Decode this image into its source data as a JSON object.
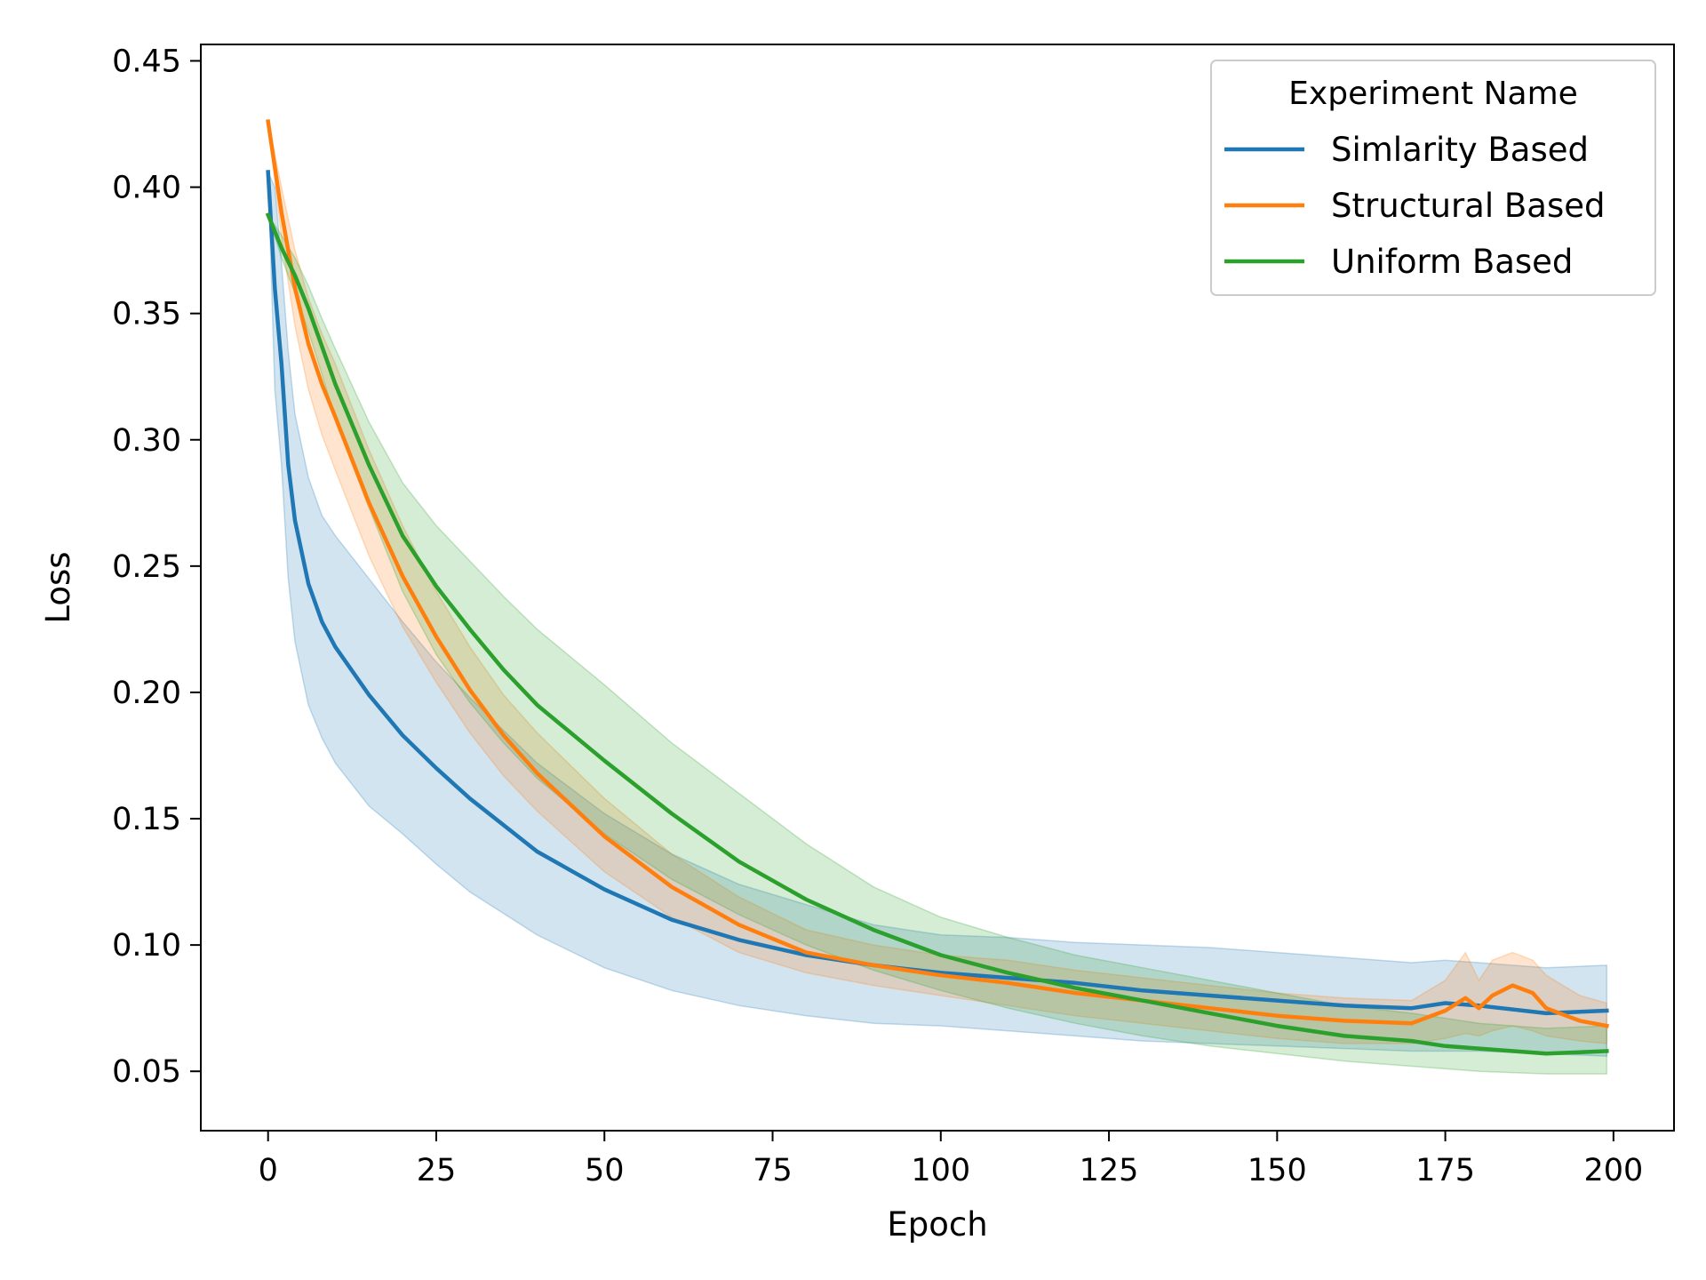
{
  "chart_data": {
    "type": "line",
    "xlabel": "Epoch",
    "ylabel": "Loss",
    "xlim": [
      -10,
      209
    ],
    "ylim": [
      0.0265,
      0.4565
    ],
    "xticks": [
      0,
      25,
      50,
      75,
      100,
      125,
      150,
      175,
      200
    ],
    "yticks": [
      0.05,
      0.1,
      0.15,
      0.2,
      0.25,
      0.3,
      0.35,
      0.4,
      0.45
    ],
    "ytick_labels": [
      "0.05",
      "0.10",
      "0.15",
      "0.20",
      "0.25",
      "0.30",
      "0.35",
      "0.40",
      "0.45"
    ],
    "grid": false,
    "legend": {
      "title": "Experiment Name",
      "placement": "top-right"
    },
    "series": [
      {
        "name": "Simlarity Based",
        "color": "#1f77b4",
        "x": [
          0,
          1,
          2,
          3,
          4,
          6,
          8,
          10,
          15,
          20,
          25,
          30,
          40,
          50,
          60,
          70,
          80,
          90,
          100,
          110,
          120,
          130,
          140,
          150,
          160,
          170,
          175,
          180,
          190,
          199
        ],
        "y": [
          0.406,
          0.36,
          0.33,
          0.29,
          0.268,
          0.243,
          0.228,
          0.218,
          0.199,
          0.183,
          0.17,
          0.158,
          0.137,
          0.122,
          0.11,
          0.102,
          0.096,
          0.092,
          0.089,
          0.087,
          0.085,
          0.082,
          0.08,
          0.078,
          0.076,
          0.075,
          0.077,
          0.076,
          0.073,
          0.074
        ],
        "lower": [
          0.406,
          0.32,
          0.29,
          0.245,
          0.22,
          0.195,
          0.182,
          0.172,
          0.155,
          0.144,
          0.132,
          0.121,
          0.104,
          0.091,
          0.082,
          0.076,
          0.072,
          0.069,
          0.068,
          0.066,
          0.064,
          0.062,
          0.061,
          0.06,
          0.059,
          0.058,
          0.058,
          0.058,
          0.057,
          0.056
        ],
        "upper": [
          0.406,
          0.4,
          0.37,
          0.335,
          0.31,
          0.285,
          0.27,
          0.262,
          0.245,
          0.228,
          0.212,
          0.198,
          0.172,
          0.152,
          0.136,
          0.124,
          0.116,
          0.108,
          0.104,
          0.103,
          0.101,
          0.1,
          0.099,
          0.097,
          0.095,
          0.093,
          0.094,
          0.093,
          0.091,
          0.092
        ]
      },
      {
        "name": "Structural Based",
        "color": "#ff7f0e",
        "x": [
          0,
          2,
          4,
          6,
          8,
          10,
          15,
          20,
          25,
          30,
          35,
          40,
          50,
          60,
          70,
          80,
          90,
          100,
          110,
          120,
          130,
          140,
          150,
          160,
          170,
          175,
          178,
          180,
          182,
          185,
          188,
          190,
          195,
          199
        ],
        "y": [
          0.426,
          0.39,
          0.36,
          0.338,
          0.322,
          0.309,
          0.275,
          0.246,
          0.222,
          0.201,
          0.183,
          0.168,
          0.143,
          0.123,
          0.108,
          0.097,
          0.092,
          0.088,
          0.085,
          0.081,
          0.078,
          0.075,
          0.072,
          0.07,
          0.069,
          0.074,
          0.079,
          0.075,
          0.08,
          0.084,
          0.081,
          0.075,
          0.07,
          0.068
        ],
        "lower": [
          0.426,
          0.38,
          0.345,
          0.32,
          0.302,
          0.288,
          0.254,
          0.226,
          0.204,
          0.184,
          0.167,
          0.153,
          0.129,
          0.111,
          0.097,
          0.089,
          0.084,
          0.08,
          0.076,
          0.072,
          0.069,
          0.066,
          0.063,
          0.061,
          0.061,
          0.063,
          0.065,
          0.064,
          0.066,
          0.068,
          0.066,
          0.064,
          0.062,
          0.061
        ],
        "upper": [
          0.426,
          0.4,
          0.375,
          0.356,
          0.342,
          0.33,
          0.296,
          0.266,
          0.24,
          0.218,
          0.199,
          0.184,
          0.158,
          0.136,
          0.119,
          0.106,
          0.1,
          0.096,
          0.094,
          0.09,
          0.087,
          0.084,
          0.081,
          0.079,
          0.078,
          0.086,
          0.097,
          0.086,
          0.094,
          0.097,
          0.094,
          0.088,
          0.08,
          0.077
        ]
      },
      {
        "name": "Uniform Based",
        "color": "#2ca02c",
        "x": [
          0,
          2,
          4,
          6,
          8,
          10,
          15,
          20,
          25,
          30,
          35,
          40,
          50,
          60,
          70,
          80,
          90,
          100,
          110,
          120,
          130,
          140,
          150,
          160,
          170,
          175,
          180,
          190,
          199
        ],
        "y": [
          0.389,
          0.376,
          0.365,
          0.352,
          0.337,
          0.322,
          0.29,
          0.262,
          0.242,
          0.225,
          0.209,
          0.195,
          0.173,
          0.152,
          0.133,
          0.118,
          0.106,
          0.096,
          0.089,
          0.083,
          0.078,
          0.073,
          0.068,
          0.064,
          0.062,
          0.06,
          0.059,
          0.057,
          0.058
        ],
        "lower": [
          0.389,
          0.372,
          0.358,
          0.343,
          0.326,
          0.308,
          0.273,
          0.24,
          0.215,
          0.196,
          0.18,
          0.166,
          0.144,
          0.126,
          0.112,
          0.1,
          0.09,
          0.082,
          0.075,
          0.069,
          0.064,
          0.06,
          0.057,
          0.054,
          0.052,
          0.051,
          0.05,
          0.049,
          0.049
        ],
        "upper": [
          0.389,
          0.381,
          0.372,
          0.361,
          0.348,
          0.336,
          0.307,
          0.283,
          0.266,
          0.252,
          0.238,
          0.225,
          0.203,
          0.18,
          0.16,
          0.14,
          0.123,
          0.111,
          0.103,
          0.096,
          0.091,
          0.086,
          0.081,
          0.076,
          0.073,
          0.071,
          0.069,
          0.067,
          0.068
        ]
      }
    ]
  }
}
